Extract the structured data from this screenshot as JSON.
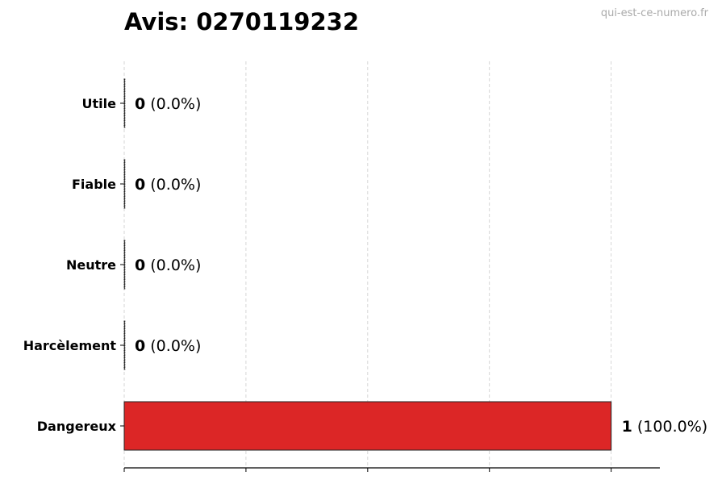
{
  "chart_data": {
    "type": "bar",
    "orientation": "horizontal",
    "title": "Avis: 0270119232",
    "watermark": "qui-est-ce-numero.fr",
    "categories": [
      "Utile",
      "Fiable",
      "Neutre",
      "Harcèlement",
      "Dangereux"
    ],
    "values": [
      0,
      0,
      0,
      0,
      1
    ],
    "percent_labels": [
      "(0.0%)",
      "(0.0%)",
      "(0.0%)",
      "(0.0%)",
      "(100.0%)"
    ],
    "xlim": [
      0,
      1.1
    ],
    "x_gridlines": [
      0,
      0.25,
      0.5,
      0.75,
      1.0
    ],
    "grid": true,
    "xlabel": "",
    "ylabel": "",
    "bar_color": "#dc2626"
  }
}
